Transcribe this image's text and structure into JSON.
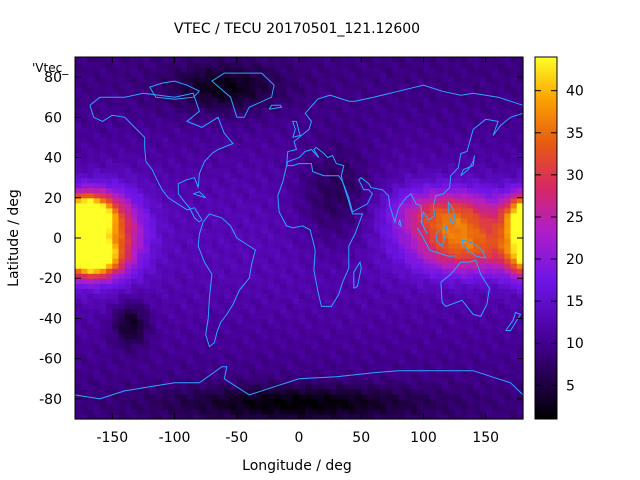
{
  "chart_data": {
    "type": "heatmap",
    "title": "VTEC / TECU 20170501_121.12600",
    "series_label": "'Vtec_",
    "xlabel": "Longitude / deg",
    "ylabel": "Latitude / deg",
    "xlim": [
      -180,
      180
    ],
    "ylim": [
      -90,
      90
    ],
    "xticks": [
      -150,
      -100,
      -50,
      0,
      50,
      100,
      150
    ],
    "yticks": [
      80,
      60,
      40,
      20,
      0,
      -20,
      -40,
      -60,
      -80
    ],
    "colorbar": {
      "range": [
        1,
        44
      ],
      "ticks": [
        5,
        10,
        15,
        20,
        25,
        30,
        35,
        40
      ],
      "palette": "black-purple-magenta-red-orange-yellow"
    },
    "grid": false,
    "cell_size_deg": {
      "lon": 5,
      "lat": 2.5
    },
    "features": [
      {
        "lon": -170,
        "lat": 12,
        "value": 44,
        "sigma_lon": 14,
        "sigma_lat": 7
      },
      {
        "lon": -165,
        "lat": -10,
        "value": 42,
        "sigma_lon": 13,
        "sigma_lat": 6
      },
      {
        "lon": -150,
        "lat": 2,
        "value": 30,
        "sigma_lon": 18,
        "sigma_lat": 14
      },
      {
        "lon": 120,
        "lat": 12,
        "value": 30,
        "sigma_lon": 30,
        "sigma_lat": 9
      },
      {
        "lon": 135,
        "lat": -5,
        "value": 30,
        "sigma_lon": 30,
        "sigma_lat": 9
      },
      {
        "lon": 180,
        "lat": 0,
        "value": 28,
        "sigma_lon": 12,
        "sigma_lat": 12
      },
      {
        "lon": -135,
        "lat": -42,
        "value": 3,
        "sigma_lon": 10,
        "sigma_lat": 8
      },
      {
        "lon": 30,
        "lat": 20,
        "value": 5,
        "sigma_lon": 22,
        "sigma_lat": 18
      },
      {
        "lon": 0,
        "lat": -82,
        "value": 3,
        "sigma_lon": 70,
        "sigma_lat": 6
      },
      {
        "lon": -60,
        "lat": 75,
        "value": 4,
        "sigma_lon": 30,
        "sigma_lat": 8
      }
    ],
    "background_value": 11
  },
  "colors": {
    "coastline": "#2aa6ff",
    "frame": "#000000"
  }
}
